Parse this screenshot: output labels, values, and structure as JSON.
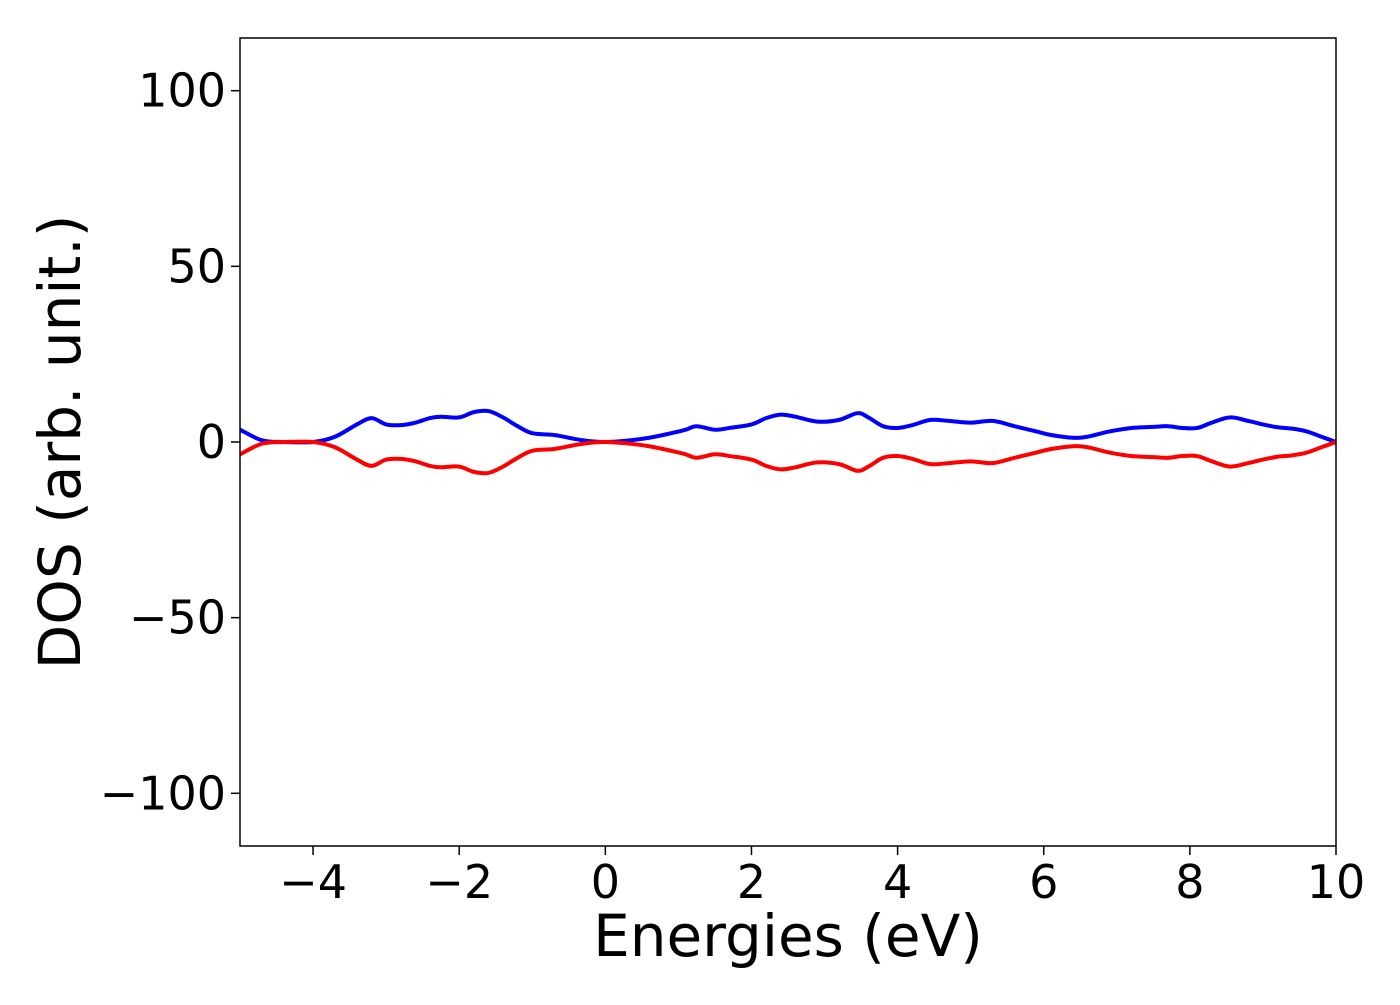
{
  "chart_data": {
    "type": "line",
    "title": "",
    "xlabel": "Energies (eV)",
    "ylabel": "DOS (arb. unit.)",
    "xlim": [
      -5,
      10
    ],
    "ylim": [
      -115,
      115
    ],
    "xticks": [
      -4,
      -2,
      0,
      2,
      4,
      6,
      8,
      10
    ],
    "xtick_labels": [
      "−4",
      "−2",
      "0",
      "2",
      "4",
      "6",
      "8",
      "10"
    ],
    "yticks": [
      100,
      50,
      0,
      -50,
      -100
    ],
    "ytick_labels": [
      "100",
      "50",
      "0",
      "−50",
      "−100"
    ],
    "grid": false,
    "legend": "none",
    "series": [
      {
        "color": "#0000ff",
        "x": [
          -5.0,
          -4.7,
          -4.4,
          -4.0,
          -3.7,
          -3.4,
          -3.2,
          -3.0,
          -2.8,
          -2.6,
          -2.4,
          -2.25,
          -2.0,
          -1.8,
          -1.6,
          -1.4,
          -1.2,
          -1.0,
          -0.7,
          -0.4,
          -0.2,
          0.0,
          0.3,
          0.6,
          0.9,
          1.1,
          1.25,
          1.5,
          1.7,
          2.0,
          2.2,
          2.4,
          2.6,
          2.9,
          3.2,
          3.45,
          3.6,
          3.8,
          4.0,
          4.2,
          4.45,
          4.7,
          5.0,
          5.3,
          5.6,
          5.9,
          6.1,
          6.4,
          6.6,
          6.9,
          7.2,
          7.5,
          7.7,
          7.9,
          8.1,
          8.3,
          8.55,
          8.8,
          9.0,
          9.2,
          9.4,
          9.6,
          9.8,
          10.0
        ],
        "y": [
          3.5,
          0.5,
          0.0,
          0.0,
          1.5,
          5.0,
          6.8,
          5.0,
          4.8,
          5.5,
          6.8,
          7.2,
          7.0,
          8.5,
          8.8,
          7.0,
          4.5,
          2.5,
          2.0,
          0.8,
          0.2,
          0.0,
          0.4,
          1.2,
          2.5,
          3.5,
          4.5,
          3.5,
          4.0,
          5.0,
          6.8,
          7.8,
          7.2,
          5.8,
          6.3,
          8.2,
          7.0,
          4.5,
          4.0,
          4.8,
          6.3,
          6.0,
          5.5,
          6.0,
          4.5,
          3.0,
          2.0,
          1.2,
          1.5,
          3.0,
          4.0,
          4.3,
          4.5,
          4.0,
          4.0,
          5.5,
          7.0,
          6.0,
          5.0,
          4.2,
          3.8,
          3.0,
          1.5,
          0.0
        ]
      },
      {
        "color": "#ff0000",
        "x": [
          -5.0,
          -4.7,
          -4.4,
          -4.0,
          -3.7,
          -3.4,
          -3.2,
          -3.0,
          -2.8,
          -2.6,
          -2.4,
          -2.25,
          -2.0,
          -1.8,
          -1.6,
          -1.4,
          -1.2,
          -1.0,
          -0.7,
          -0.4,
          -0.2,
          0.0,
          0.3,
          0.6,
          0.9,
          1.1,
          1.25,
          1.5,
          1.7,
          2.0,
          2.2,
          2.4,
          2.6,
          2.9,
          3.2,
          3.45,
          3.6,
          3.8,
          4.0,
          4.2,
          4.45,
          4.7,
          5.0,
          5.3,
          5.6,
          5.9,
          6.1,
          6.4,
          6.6,
          6.9,
          7.2,
          7.5,
          7.7,
          7.9,
          8.1,
          8.3,
          8.55,
          8.8,
          9.0,
          9.2,
          9.4,
          9.6,
          9.8,
          10.0
        ],
        "y": [
          -3.5,
          -0.5,
          0.0,
          0.0,
          -1.5,
          -5.0,
          -6.8,
          -5.0,
          -4.8,
          -5.5,
          -6.8,
          -7.2,
          -7.0,
          -8.5,
          -8.8,
          -7.0,
          -4.5,
          -2.5,
          -2.0,
          -0.8,
          -0.2,
          0.0,
          -0.4,
          -1.2,
          -2.5,
          -3.5,
          -4.5,
          -3.5,
          -4.0,
          -5.0,
          -6.8,
          -7.8,
          -7.2,
          -5.8,
          -6.3,
          -8.2,
          -7.0,
          -4.5,
          -4.0,
          -4.8,
          -6.3,
          -6.0,
          -5.5,
          -6.0,
          -4.5,
          -3.0,
          -2.0,
          -1.2,
          -1.5,
          -3.0,
          -4.0,
          -4.3,
          -4.5,
          -4.0,
          -4.0,
          -5.5,
          -7.0,
          -6.0,
          -5.0,
          -4.2,
          -3.8,
          -3.0,
          -1.5,
          0.0
        ]
      }
    ]
  }
}
